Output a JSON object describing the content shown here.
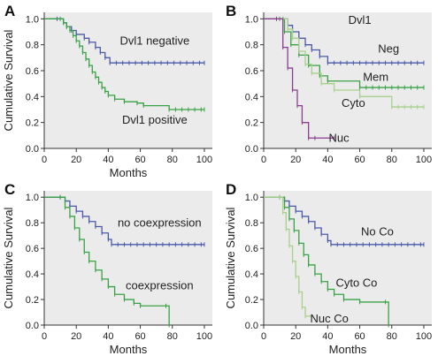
{
  "colors": {
    "plot_background": "#ebebeb",
    "blue": "#4a5aa8",
    "green": "#3aa246",
    "light_green": "#a8d08d",
    "purple": "#8a3f8f"
  },
  "chart_data": [
    {
      "panel": "A",
      "type": "line",
      "step": true,
      "title": "",
      "xlabel": "Months",
      "ylabel": "Cumulative Survival",
      "xlim": [
        0,
        105
      ],
      "ylim": [
        0,
        1.05
      ],
      "xticks": [
        "0",
        "20",
        "40",
        "60",
        "80",
        "100"
      ],
      "yticks": [
        "0.0",
        "0.2",
        "0.4",
        "0.6",
        "0.8",
        "1.0"
      ],
      "series": [
        {
          "color": "#4a5aa8",
          "x": [
            0,
            8,
            12,
            14,
            17,
            20,
            25,
            28,
            32,
            35,
            38,
            41,
            100
          ],
          "y": [
            1.0,
            1.0,
            0.97,
            0.94,
            0.91,
            0.88,
            0.85,
            0.82,
            0.78,
            0.74,
            0.7,
            0.66,
            0.66
          ]
        },
        {
          "color": "#3aa246",
          "x": [
            0,
            10,
            12,
            14,
            16,
            18,
            20,
            22,
            24,
            26,
            28,
            30,
            32,
            34,
            36,
            38,
            40,
            44,
            50,
            58,
            62,
            78,
            100
          ],
          "y": [
            1.0,
            1.0,
            0.97,
            0.94,
            0.91,
            0.87,
            0.83,
            0.79,
            0.74,
            0.69,
            0.64,
            0.59,
            0.55,
            0.51,
            0.47,
            0.44,
            0.41,
            0.38,
            0.36,
            0.35,
            0.33,
            0.3,
            0.3
          ]
        }
      ],
      "annotations": [
        {
          "text": "Dvl1 negative",
          "x": 69,
          "y": 0.8
        },
        {
          "text": "Dvl1 positive",
          "x": 69,
          "y": 0.19
        }
      ]
    },
    {
      "panel": "B",
      "type": "line",
      "step": true,
      "title": "",
      "xlabel": "",
      "ylabel": "",
      "xlim": [
        0,
        105
      ],
      "ylim": [
        0,
        1.05
      ],
      "xticks": [
        "0",
        "20",
        "40",
        "60",
        "80",
        "100"
      ],
      "yticks": [
        "0.0",
        "0.2",
        "0.4",
        "0.6",
        "0.8",
        "1.0"
      ],
      "series": [
        {
          "color": "#4a5aa8",
          "x": [
            0,
            12,
            15,
            18,
            22,
            26,
            30,
            35,
            40,
            100
          ],
          "y": [
            1.0,
            1.0,
            0.95,
            0.9,
            0.85,
            0.8,
            0.76,
            0.71,
            0.66,
            0.66
          ]
        },
        {
          "color": "#3aa246",
          "x": [
            0,
            10,
            13,
            17,
            22,
            28,
            35,
            40,
            60,
            100
          ],
          "y": [
            1.0,
            1.0,
            0.9,
            0.8,
            0.72,
            0.64,
            0.56,
            0.52,
            0.47,
            0.47
          ]
        },
        {
          "color": "#a8d08d",
          "x": [
            0,
            12,
            15,
            18,
            22,
            26,
            30,
            36,
            44,
            60,
            80,
            100
          ],
          "y": [
            1.0,
            1.0,
            0.92,
            0.85,
            0.75,
            0.65,
            0.58,
            0.5,
            0.45,
            0.4,
            0.32,
            0.32
          ]
        },
        {
          "color": "#8a3f8f",
          "x": [
            0,
            8,
            12,
            15,
            18,
            21,
            24,
            28,
            32,
            44
          ],
          "y": [
            1.0,
            1.0,
            0.78,
            0.62,
            0.45,
            0.33,
            0.2,
            0.08,
            0.08,
            0.08
          ]
        }
      ],
      "annotations": [
        {
          "text": "Dvl1",
          "x": 60,
          "y": 0.96
        },
        {
          "text": "Neg",
          "x": 78,
          "y": 0.74
        },
        {
          "text": "Mem",
          "x": 70,
          "y": 0.52
        },
        {
          "text": "Cyto",
          "x": 56,
          "y": 0.32
        },
        {
          "text": "Nuc",
          "x": 47,
          "y": 0.05
        }
      ]
    },
    {
      "panel": "C",
      "type": "line",
      "step": true,
      "title": "",
      "xlabel": "Months",
      "ylabel": "Cumulative Survival",
      "xlim": [
        0,
        105
      ],
      "ylim": [
        0,
        1.05
      ],
      "xticks": [
        "0",
        "20",
        "40",
        "60",
        "80",
        "100"
      ],
      "yticks": [
        "0.0",
        "0.2",
        "0.4",
        "0.6",
        "0.8",
        "1.0"
      ],
      "series": [
        {
          "color": "#4a5aa8",
          "x": [
            0,
            10,
            13,
            16,
            20,
            24,
            28,
            32,
            36,
            40,
            42,
            100
          ],
          "y": [
            1.0,
            1.0,
            0.97,
            0.93,
            0.89,
            0.85,
            0.81,
            0.77,
            0.72,
            0.67,
            0.63,
            0.63
          ]
        },
        {
          "color": "#3aa246",
          "x": [
            0,
            10,
            13,
            16,
            19,
            22,
            25,
            28,
            32,
            36,
            40,
            44,
            50,
            56,
            60,
            76,
            78
          ],
          "y": [
            1.0,
            1.0,
            0.92,
            0.85,
            0.76,
            0.67,
            0.57,
            0.5,
            0.43,
            0.36,
            0.3,
            0.24,
            0.2,
            0.17,
            0.15,
            0.15,
            0.0
          ]
        }
      ],
      "annotations": [
        {
          "text": "no coexpression",
          "x": 72,
          "y": 0.77
        },
        {
          "text": "coexpression",
          "x": 72,
          "y": 0.28
        }
      ]
    },
    {
      "panel": "D",
      "type": "line",
      "step": true,
      "title": "",
      "xlabel": "Months",
      "ylabel": "Cumulative Survival",
      "xlim": [
        0,
        105
      ],
      "ylim": [
        0,
        1.05
      ],
      "xticks": [
        "0",
        "20",
        "40",
        "60",
        "80",
        "100"
      ],
      "yticks": [
        "0.0",
        "0.2",
        "0.4",
        "0.6",
        "0.8",
        "1.0"
      ],
      "series": [
        {
          "color": "#4a5aa8",
          "x": [
            0,
            10,
            13,
            16,
            20,
            24,
            28,
            32,
            36,
            40,
            42,
            100
          ],
          "y": [
            1.0,
            1.0,
            0.97,
            0.93,
            0.89,
            0.85,
            0.81,
            0.76,
            0.71,
            0.66,
            0.63,
            0.63
          ]
        },
        {
          "color": "#3aa246",
          "x": [
            0,
            10,
            13,
            16,
            19,
            22,
            25,
            28,
            32,
            36,
            40,
            44,
            50,
            60,
            76,
            78
          ],
          "y": [
            1.0,
            1.0,
            0.92,
            0.83,
            0.74,
            0.64,
            0.55,
            0.47,
            0.4,
            0.34,
            0.28,
            0.24,
            0.2,
            0.18,
            0.18,
            0.0
          ]
        },
        {
          "color": "#a8d08d",
          "x": [
            0,
            10,
            12,
            14,
            16,
            18,
            20,
            22,
            24,
            26,
            30
          ],
          "y": [
            1.0,
            1.0,
            0.88,
            0.75,
            0.62,
            0.5,
            0.38,
            0.26,
            0.14,
            0.07,
            0.07
          ]
        }
      ],
      "annotations": [
        {
          "text": "No Co",
          "x": 71,
          "y": 0.7
        },
        {
          "text": "Cyto  Co",
          "x": 58,
          "y": 0.3
        },
        {
          "text": "Nuc Co",
          "x": 41,
          "y": 0.02
        }
      ]
    }
  ]
}
